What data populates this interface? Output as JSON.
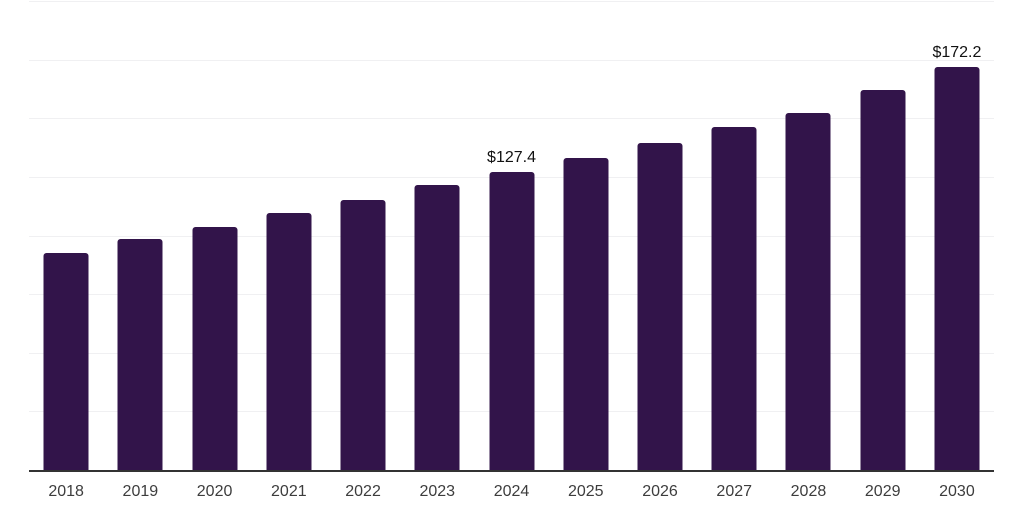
{
  "chart_data": {
    "type": "bar",
    "title": "",
    "xlabel": "",
    "ylabel": "",
    "categories": [
      "2018",
      "2019",
      "2020",
      "2021",
      "2022",
      "2023",
      "2024",
      "2025",
      "2026",
      "2027",
      "2028",
      "2029",
      "2030"
    ],
    "values": [
      93.0,
      98.8,
      103.9,
      110.1,
      115.4,
      121.8,
      127.4,
      133.5,
      139.9,
      146.5,
      152.7,
      162.3,
      172.2
    ],
    "value_prefix": "$",
    "data_labels": {
      "2024": "$127.4",
      "2030": "$172.2"
    },
    "ylim": [
      0,
      200
    ],
    "gridline_step": 25,
    "grid": true,
    "y_axis_tick_labels_visible": false,
    "legend": "none",
    "colors": {
      "bar": "#32144A",
      "gridline": "#F0F0F2",
      "axis_line": "#333333",
      "tick_label": "#3D3D3D",
      "data_label": "#111111",
      "background": "#FFFFFF"
    }
  }
}
